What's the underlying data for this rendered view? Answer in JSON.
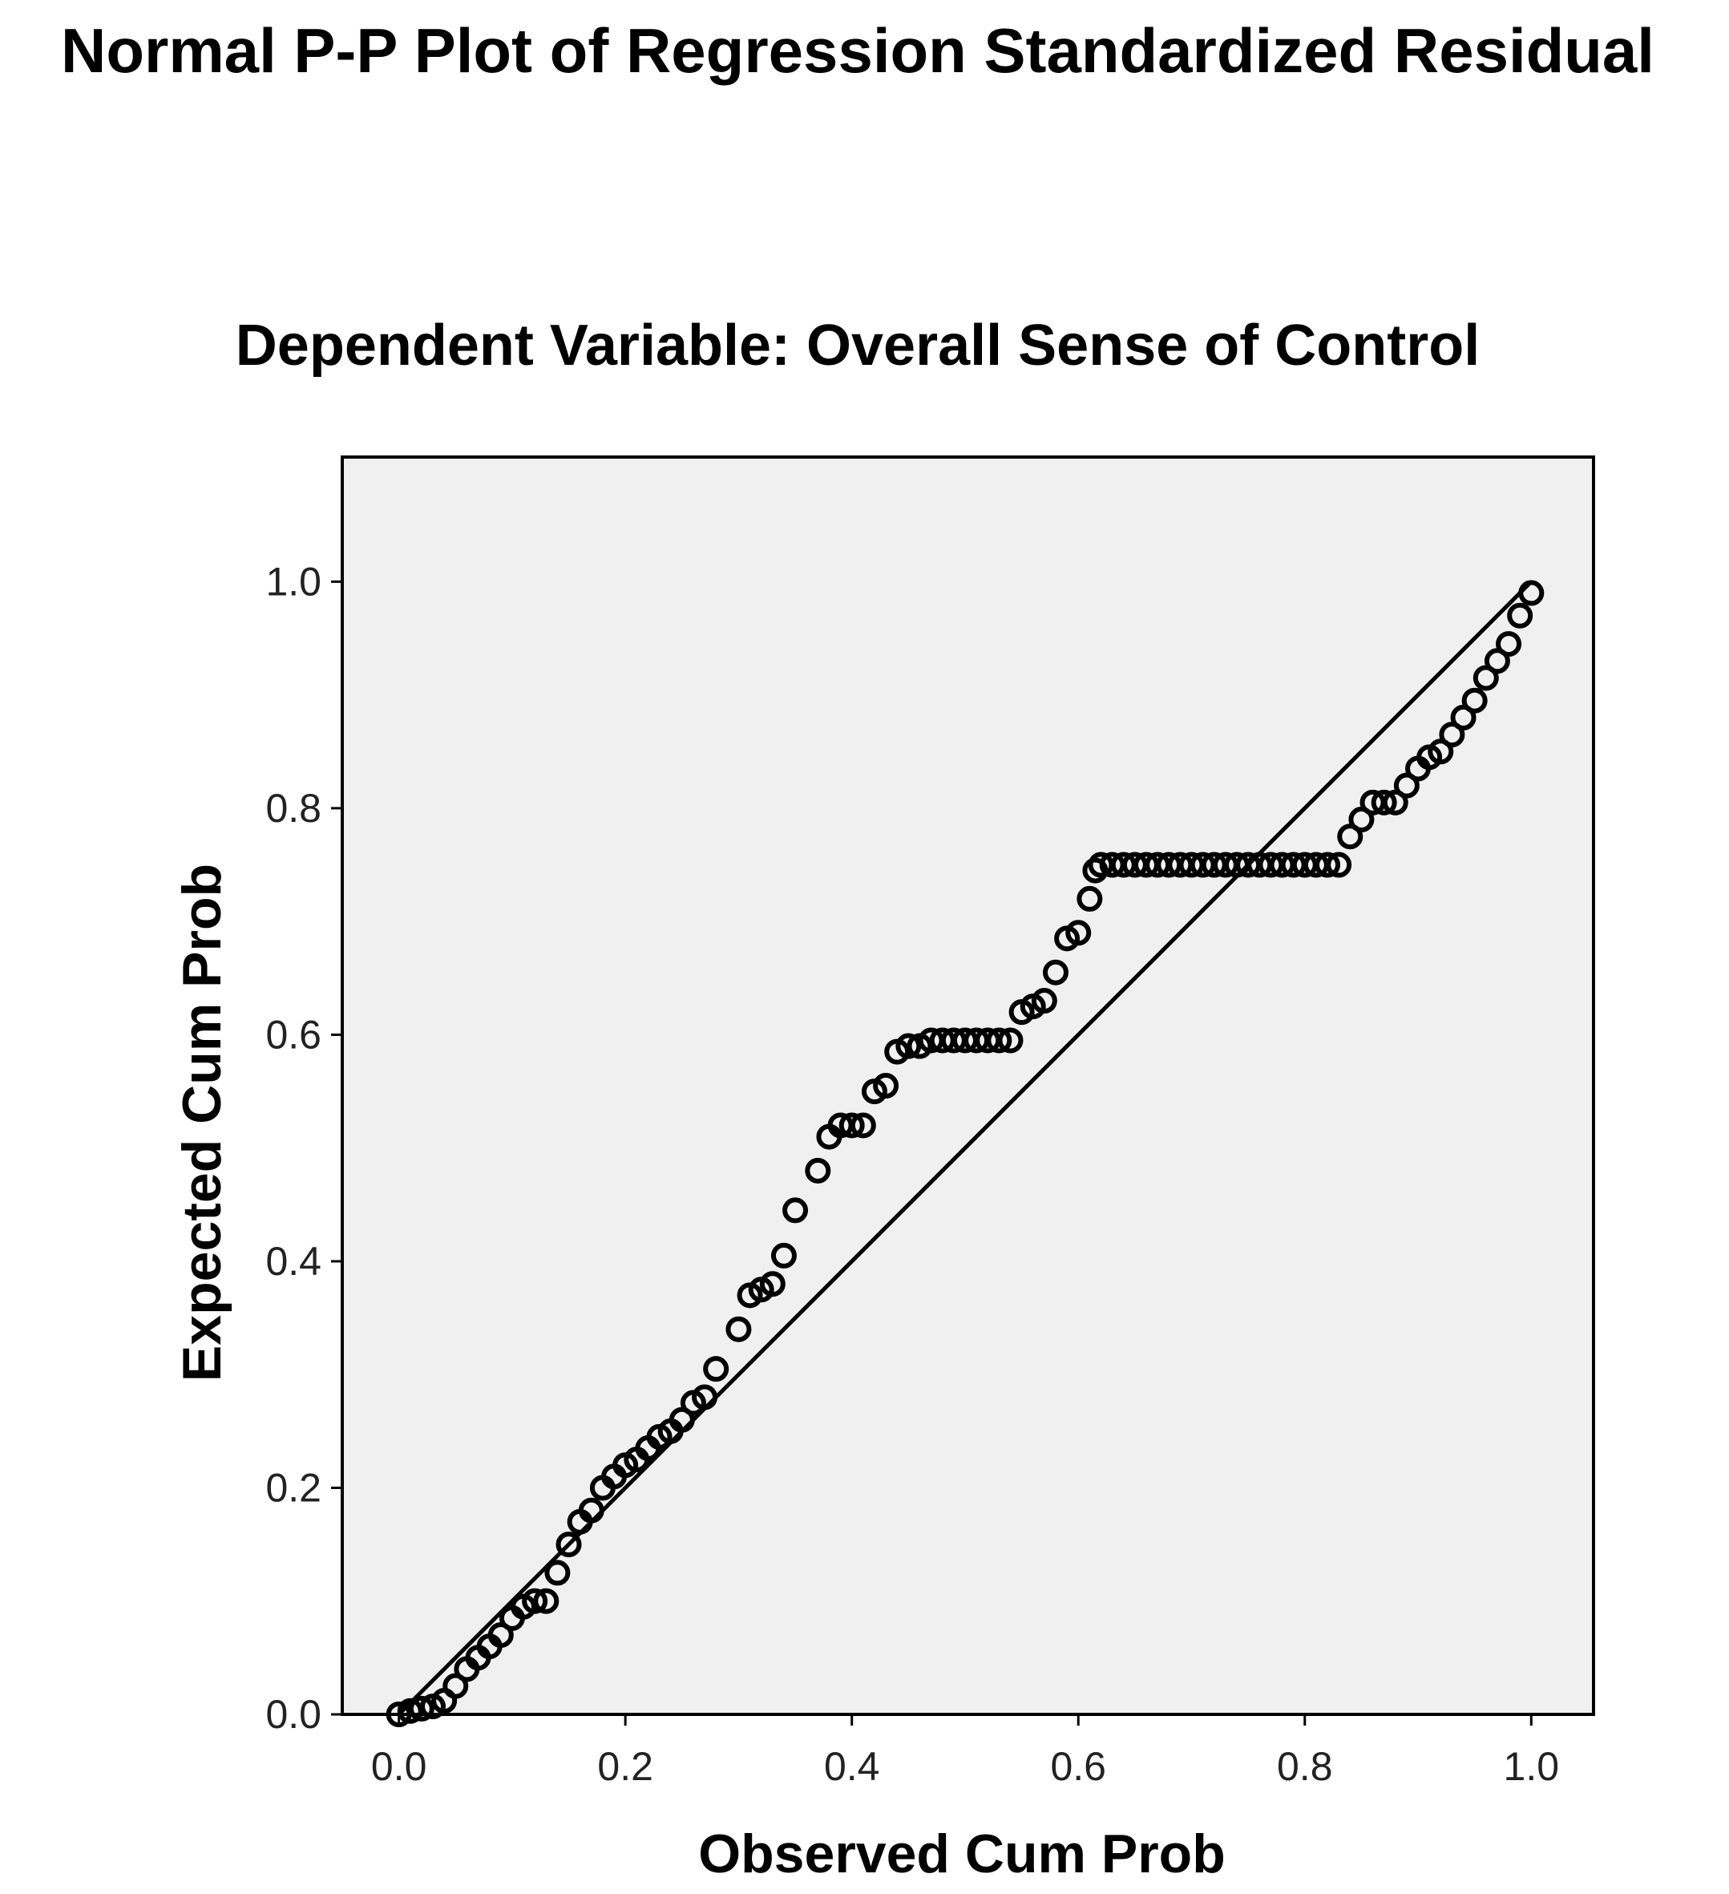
{
  "chart_data": {
    "type": "scatter",
    "title": "Normal P-P Plot of Regression Standardized Residual",
    "subtitle": "Dependent Variable: Overall Sense of Control",
    "xlabel": "Observed Cum Prob",
    "ylabel": "Expected Cum Prob",
    "xlim": [
      -0.05,
      1.055
    ],
    "ylim": [
      0.0,
      1.11
    ],
    "xticks": [
      "0.0",
      "0.2",
      "0.4",
      "0.6",
      "0.8",
      "1.0"
    ],
    "yticks": [
      "0.0",
      "0.2",
      "0.4",
      "0.6",
      "0.8",
      "1.0"
    ],
    "plot_background": "#f0f0f0",
    "marker_color": "#000000",
    "grid": false,
    "reference_line": [
      [
        0.0,
        0.0
      ],
      [
        1.0,
        1.0
      ]
    ],
    "points": [
      [
        0.0,
        0.0
      ],
      [
        0.01,
        0.003
      ],
      [
        0.02,
        0.005
      ],
      [
        0.03,
        0.007
      ],
      [
        0.04,
        0.012
      ],
      [
        0.05,
        0.025
      ],
      [
        0.06,
        0.04
      ],
      [
        0.07,
        0.05
      ],
      [
        0.08,
        0.06
      ],
      [
        0.09,
        0.07
      ],
      [
        0.1,
        0.085
      ],
      [
        0.11,
        0.095
      ],
      [
        0.12,
        0.1
      ],
      [
        0.13,
        0.1
      ],
      [
        0.14,
        0.125
      ],
      [
        0.15,
        0.15
      ],
      [
        0.16,
        0.17
      ],
      [
        0.17,
        0.18
      ],
      [
        0.18,
        0.2
      ],
      [
        0.19,
        0.21
      ],
      [
        0.2,
        0.22
      ],
      [
        0.21,
        0.225
      ],
      [
        0.22,
        0.235
      ],
      [
        0.23,
        0.245
      ],
      [
        0.24,
        0.25
      ],
      [
        0.25,
        0.26
      ],
      [
        0.26,
        0.275
      ],
      [
        0.27,
        0.28
      ],
      [
        0.28,
        0.305
      ],
      [
        0.3,
        0.34
      ],
      [
        0.31,
        0.37
      ],
      [
        0.32,
        0.375
      ],
      [
        0.33,
        0.38
      ],
      [
        0.34,
        0.405
      ],
      [
        0.35,
        0.445
      ],
      [
        0.37,
        0.48
      ],
      [
        0.38,
        0.51
      ],
      [
        0.39,
        0.52
      ],
      [
        0.4,
        0.52
      ],
      [
        0.41,
        0.52
      ],
      [
        0.42,
        0.55
      ],
      [
        0.43,
        0.555
      ],
      [
        0.44,
        0.585
      ],
      [
        0.45,
        0.59
      ],
      [
        0.46,
        0.59
      ],
      [
        0.47,
        0.595
      ],
      [
        0.48,
        0.595
      ],
      [
        0.49,
        0.595
      ],
      [
        0.5,
        0.595
      ],
      [
        0.51,
        0.595
      ],
      [
        0.52,
        0.595
      ],
      [
        0.53,
        0.595
      ],
      [
        0.54,
        0.595
      ],
      [
        0.55,
        0.62
      ],
      [
        0.56,
        0.625
      ],
      [
        0.57,
        0.63
      ],
      [
        0.58,
        0.655
      ],
      [
        0.59,
        0.685
      ],
      [
        0.6,
        0.69
      ],
      [
        0.61,
        0.72
      ],
      [
        0.615,
        0.745
      ],
      [
        0.62,
        0.75
      ],
      [
        0.63,
        0.75
      ],
      [
        0.64,
        0.75
      ],
      [
        0.65,
        0.75
      ],
      [
        0.66,
        0.75
      ],
      [
        0.67,
        0.75
      ],
      [
        0.68,
        0.75
      ],
      [
        0.69,
        0.75
      ],
      [
        0.7,
        0.75
      ],
      [
        0.71,
        0.75
      ],
      [
        0.72,
        0.75
      ],
      [
        0.73,
        0.75
      ],
      [
        0.74,
        0.75
      ],
      [
        0.75,
        0.75
      ],
      [
        0.76,
        0.75
      ],
      [
        0.77,
        0.75
      ],
      [
        0.78,
        0.75
      ],
      [
        0.79,
        0.75
      ],
      [
        0.8,
        0.75
      ],
      [
        0.81,
        0.75
      ],
      [
        0.82,
        0.75
      ],
      [
        0.83,
        0.75
      ],
      [
        0.84,
        0.775
      ],
      [
        0.85,
        0.79
      ],
      [
        0.86,
        0.805
      ],
      [
        0.87,
        0.805
      ],
      [
        0.88,
        0.805
      ],
      [
        0.89,
        0.82
      ],
      [
        0.9,
        0.835
      ],
      [
        0.91,
        0.845
      ],
      [
        0.92,
        0.85
      ],
      [
        0.93,
        0.865
      ],
      [
        0.94,
        0.88
      ],
      [
        0.95,
        0.895
      ],
      [
        0.96,
        0.915
      ],
      [
        0.97,
        0.93
      ],
      [
        0.98,
        0.945
      ],
      [
        0.99,
        0.97
      ],
      [
        1.0,
        0.99
      ]
    ]
  }
}
